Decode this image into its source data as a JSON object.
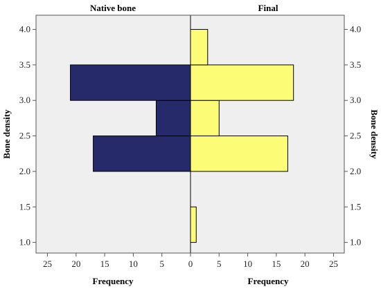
{
  "chart_data": {
    "type": "bar",
    "orientation": "horizontal",
    "layout": "back-to-back population pyramid",
    "y_categories": [
      1.25,
      1.75,
      2.25,
      2.75,
      3.25,
      3.75
    ],
    "ylabel": "Bone density",
    "ylim": [
      0.85,
      4.2
    ],
    "yticks": [
      1.0,
      1.5,
      2.0,
      2.5,
      3.0,
      3.5,
      4.0
    ],
    "ytick_labels": [
      "1.0",
      "1.5",
      "2.0",
      "2.5",
      "3.0",
      "3.5",
      "4.0"
    ],
    "bin_width": 0.5,
    "xlim": [
      0,
      27
    ],
    "xticks": [
      0,
      5,
      10,
      15,
      20,
      25
    ],
    "xtick_labels": [
      "0",
      "5",
      "10",
      "15",
      "20",
      "25"
    ],
    "grid": false,
    "background": "#efefef",
    "panels": [
      {
        "title": "Native bone",
        "xlabel": "Frequency",
        "side": "left",
        "color": "#262a6b",
        "values": [
          0,
          0,
          17,
          6,
          21,
          0
        ]
      },
      {
        "title": "Final",
        "xlabel": "Frequency",
        "side": "right",
        "color": "#fcfc77",
        "values": [
          1,
          0,
          17,
          5,
          18,
          3
        ]
      }
    ]
  }
}
